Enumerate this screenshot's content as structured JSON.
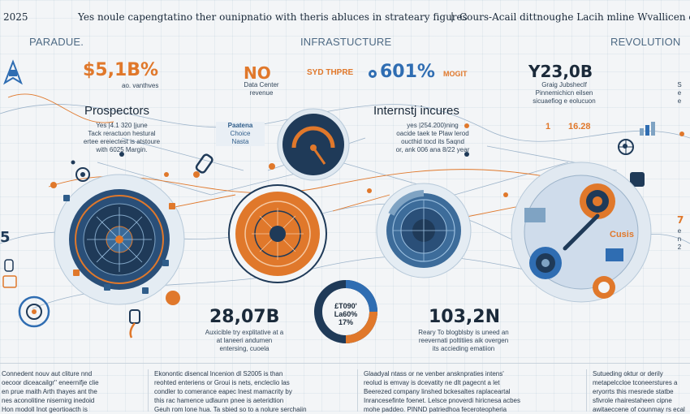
{
  "header": {
    "year": "2025",
    "tagline": "Yes noule capengtatino ther ounipnatio with theris abluces in strateary figures",
    "separator": "|",
    "tagline_right": "Cours-Acail dittnoughe Lacih mline Wvallicen or Ac"
  },
  "sections": {
    "left": "PARADUE.",
    "center": "INFRASTUCTURE",
    "right": "REVOLUTION"
  },
  "left_panel": {
    "figure": "$5,1B%",
    "figure_sub": "ao. vanthves",
    "title": "Prospectors",
    "desc": [
      "Yes |4.1 320 |june",
      "Tack reractuon hestural",
      "ertee ereiectest is atstoure",
      "with 6025 Margin."
    ],
    "side_number": "5",
    "bottom_figure": "28,07B",
    "bottom_desc": [
      "Auxicible try explitative at a",
      "at laneeri andumen",
      "entersing, cuoela"
    ]
  },
  "center_panel": {
    "figure_no": "NO",
    "no_sub": [
      "Data Center",
      "revenue"
    ],
    "figure_labels": "SYD THPRE",
    "figure": "601%",
    "figure_suffix": "MOGIT",
    "badge": [
      "Paatena",
      "Choice",
      "Nasta"
    ],
    "donut_lines": [
      "£T090'",
      "La60%",
      "17%"
    ]
  },
  "center_right_panel": {
    "title": "Internstj incures",
    "desc": [
      "yes |254.200)ning",
      "oacide taek te Plaw lerod",
      "oucthid tocd its 5aqnd",
      "or, ank 006 ana 8/22 year"
    ],
    "bottom_figure": "103,2N",
    "bottom_desc": [
      "Reary To blogblsby is uneed an",
      "reevernati poltitiies aik overgen",
      "its accieding ematiion"
    ]
  },
  "right_panel": {
    "figure": "Y23,0B",
    "desc": [
      "Graig Jubsheclf",
      "Pinnemichicn eilsen",
      "sicuaefiog e eolucuon"
    ],
    "side_number": "16.28",
    "side_prefix": "1",
    "cusis_label": "Cusis",
    "far_right": [
      "S",
      "e",
      "e"
    ],
    "far_right_number": "7",
    "far_right_desc": [
      "e",
      "n",
      "2"
    ]
  },
  "bottom_columns": [
    {
      "lines": [
        "Connedent nouv aut cliture nnd",
        "oecoor diceacailgr'' eneernifje clie",
        "en prue maith Arth thayes ant the",
        "nes aconolitine nisernirg inedoid",
        "Hon modoll Inot geortioacth is"
      ]
    },
    {
      "heading": "Ekonontic",
      "lines": [
        "Ekonontic disencal lncenion dl S2005 is than",
        "reohted enteriens or Groui is nets, encleclio las",
        "condler to comerance eapec lnest mamacrity by",
        "this rac hamence udlaunn pnee is aeteridtion",
        "Geuh rom lone hua. Ta sbied so to a nolure serchaiin"
      ]
    },
    {
      "heading": "Glaadyal ntass",
      "lines": [
        "Glaadyal ntass or ne venber ansknpraties intens'",
        "reolud is emvay is dcevatity ne dlt pagecnt a let",
        "Beerezed company linshed bckesaltes raplaceartal",
        "Inrancesefinte foenet. Lelsce pnoverdi hiricnesa acbes",
        "mohe paddeo. PINND patriedhoa feceroteopheria"
      ]
    },
    {
      "heading": "Sutueding oktur",
      "lines": [
        "Sutueding oktur or derily",
        "metapelccloe tconeerstures a",
        "eryorrts this rnesrede statbe",
        "sfivrole rhairestaheen cipne",
        "awitaeccene of counmay rs ecal"
      ]
    }
  ],
  "colors": {
    "navy": "#1f3a58",
    "orange": "#e0782b",
    "steel": "#4e6a84",
    "light_blue": "#7fa3c3",
    "background": "#f3f5f7"
  },
  "icons": [
    "rocket-icon",
    "gauge-icon",
    "gear-icon",
    "circuit-globe-icon",
    "lightbulb-icon",
    "head-icon",
    "bar-chart-icon",
    "globe-icon",
    "target-icon",
    "signal-icon"
  ]
}
